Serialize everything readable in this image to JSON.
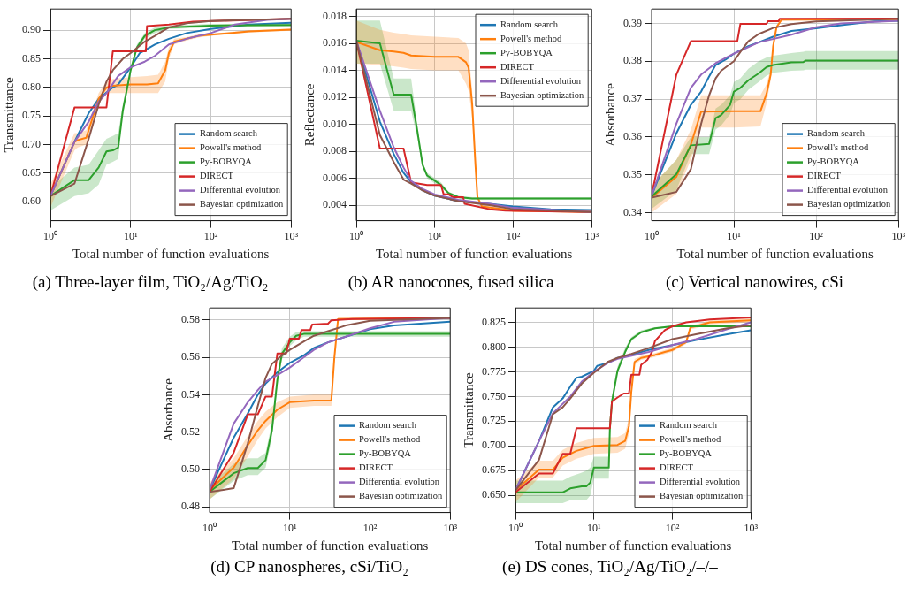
{
  "chart_data": [
    {
      "type": "line",
      "title": "(a) Three-layer film, TiO₂/Ag/TiO₂",
      "xlabel": "Total number of function evaluations",
      "ylabel": "Transmittance",
      "log": "x",
      "grid": true,
      "legend": "bottom right",
      "marker": "none",
      "line_style": "solid",
      "xlim": [
        1,
        1000
      ],
      "xticks": [
        {
          "value": 1,
          "label": "10⁰"
        },
        {
          "value": 10,
          "label": "10¹"
        },
        {
          "value": 100,
          "label": "10²"
        },
        {
          "value": 1000,
          "label": "10³"
        }
      ],
      "ylim": [
        0.567,
        0.937
      ],
      "yticks": [
        {
          "value": 0.6,
          "label": "0.60"
        },
        {
          "value": 0.65,
          "label": "0.65"
        },
        {
          "value": 0.7,
          "label": "0.70"
        },
        {
          "value": 0.75,
          "label": "0.75"
        },
        {
          "value": 0.8,
          "label": "0.80"
        },
        {
          "value": 0.85,
          "label": "0.85"
        },
        {
          "value": 0.9,
          "label": "0.90"
        }
      ],
      "series": [
        {
          "name": "Random search",
          "color": "#1f77b4",
          "x": [
            1,
            2,
            3,
            4,
            6,
            7,
            10,
            13,
            20,
            30,
            50,
            100,
            300,
            1000
          ],
          "values": [
            0.61,
            0.705,
            0.755,
            0.78,
            0.8,
            0.805,
            0.835,
            0.86,
            0.875,
            0.885,
            0.895,
            0.902,
            0.91,
            0.913
          ]
        },
        {
          "name": "Powell's method",
          "color": "#ff7f0e",
          "x": [
            1,
            2,
            2.2,
            2.8,
            4,
            5,
            6,
            10,
            16,
            22,
            27,
            30,
            35,
            50,
            70,
            100,
            300,
            1000
          ],
          "values": [
            0.61,
            0.705,
            0.708,
            0.712,
            0.78,
            0.8,
            0.803,
            0.805,
            0.805,
            0.807,
            0.83,
            0.86,
            0.88,
            0.885,
            0.89,
            0.892,
            0.898,
            0.901
          ],
          "lower": [
            0.59,
            0.69,
            0.695,
            0.7,
            0.77,
            0.79,
            0.79,
            0.79,
            0.79,
            0.79,
            0.81,
            0.85,
            0.875,
            0.882,
            0.887,
            0.89,
            0.896,
            0.899
          ],
          "upper": [
            0.63,
            0.72,
            0.72,
            0.725,
            0.79,
            0.81,
            0.815,
            0.818,
            0.82,
            0.822,
            0.845,
            0.87,
            0.885,
            0.888,
            0.893,
            0.894,
            0.9,
            0.903
          ]
        },
        {
          "name": "Py-BOBYQA",
          "color": "#2ca02c",
          "x": [
            1,
            2,
            3,
            4,
            5,
            6,
            7,
            8,
            10,
            12,
            15,
            20,
            30,
            100,
            1000
          ],
          "values": [
            0.61,
            0.638,
            0.638,
            0.66,
            0.688,
            0.69,
            0.695,
            0.76,
            0.83,
            0.87,
            0.89,
            0.9,
            0.905,
            0.908,
            0.909
          ],
          "lower": [
            0.585,
            0.61,
            0.615,
            0.63,
            0.665,
            0.67,
            0.675,
            0.75,
            0.825,
            0.865,
            0.885,
            0.895,
            0.902,
            0.905,
            0.906
          ],
          "upper": [
            0.625,
            0.66,
            0.665,
            0.69,
            0.71,
            0.715,
            0.72,
            0.77,
            0.835,
            0.875,
            0.895,
            0.905,
            0.908,
            0.911,
            0.912
          ]
        },
        {
          "name": "DIRECT",
          "color": "#d62728",
          "x": [
            1,
            2,
            5,
            6,
            15.5,
            16,
            30,
            60,
            1000
          ],
          "values": [
            0.61,
            0.765,
            0.765,
            0.863,
            0.863,
            0.907,
            0.91,
            0.915,
            0.92
          ]
        },
        {
          "name": "Differential evolution",
          "color": "#9467bd",
          "x": [
            1,
            2,
            3,
            4,
            5,
            7,
            10,
            15,
            20,
            30,
            50,
            100,
            200,
            500,
            1000
          ],
          "values": [
            0.61,
            0.705,
            0.74,
            0.775,
            0.79,
            0.82,
            0.835,
            0.845,
            0.855,
            0.875,
            0.885,
            0.895,
            0.91,
            0.918,
            0.92
          ]
        },
        {
          "name": "Bayesian optimization",
          "color": "#8c564b",
          "x": [
            1,
            2,
            3,
            4,
            5,
            6,
            8,
            10,
            15,
            20,
            30,
            50,
            100,
            1000
          ],
          "values": [
            0.61,
            0.632,
            0.71,
            0.77,
            0.81,
            0.83,
            0.85,
            0.86,
            0.88,
            0.89,
            0.905,
            0.912,
            0.916,
            0.92
          ]
        }
      ]
    },
    {
      "type": "line",
      "title": "(b) AR nanocones, fused silica",
      "xlabel": "Total number of function evaluations",
      "ylabel": "Reflectance",
      "log": "x",
      "grid": true,
      "legend": "top right",
      "marker": "none",
      "line_style": "solid",
      "xlim": [
        1,
        1000
      ],
      "xticks": [
        {
          "value": 1,
          "label": "10⁰"
        },
        {
          "value": 10,
          "label": "10¹"
        },
        {
          "value": 100,
          "label": "10²"
        },
        {
          "value": 1000,
          "label": "10³"
        }
      ],
      "ylim": [
        0.00285,
        0.01855
      ],
      "yticks": [
        {
          "value": 0.004,
          "label": "0.004"
        },
        {
          "value": 0.006,
          "label": "0.006"
        },
        {
          "value": 0.008,
          "label": "0.008"
        },
        {
          "value": 0.01,
          "label": "0.010"
        },
        {
          "value": 0.012,
          "label": "0.012"
        },
        {
          "value": 0.014,
          "label": "0.014"
        },
        {
          "value": 0.016,
          "label": "0.016"
        },
        {
          "value": 0.018,
          "label": "0.018"
        }
      ],
      "series": [
        {
          "name": "Random search",
          "color": "#1f77b4",
          "x": [
            1,
            2,
            3,
            4,
            5,
            7,
            10,
            20,
            50,
            100,
            300,
            1000
          ],
          "values": [
            0.0162,
            0.0102,
            0.0078,
            0.0064,
            0.0057,
            0.0051,
            0.0047,
            0.0043,
            0.0041,
            0.0039,
            0.0037,
            0.00365
          ]
        },
        {
          "name": "Powell's method",
          "color": "#ff7f0e",
          "x": [
            1,
            2,
            3,
            4,
            5,
            10,
            20,
            25,
            27,
            30,
            33,
            35,
            40,
            100,
            1000
          ],
          "values": [
            0.0161,
            0.0155,
            0.0154,
            0.0153,
            0.0151,
            0.015,
            0.015,
            0.0146,
            0.0142,
            0.0115,
            0.007,
            0.0046,
            0.0039,
            0.0036,
            0.0035
          ],
          "lower": [
            0.0145,
            0.0144,
            0.0143,
            0.0142,
            0.0141,
            0.014,
            0.014,
            0.013,
            0.0125,
            0.0105,
            0.0065,
            0.0044,
            0.0038,
            0.0035,
            0.00345
          ],
          "upper": [
            0.0177,
            0.017,
            0.0168,
            0.0167,
            0.0166,
            0.0165,
            0.0164,
            0.016,
            0.0155,
            0.0125,
            0.0075,
            0.0048,
            0.004,
            0.0037,
            0.00355
          ]
        },
        {
          "name": "Py-BOBYQA",
          "color": "#2ca02c",
          "x": [
            1,
            2,
            3,
            5,
            6,
            7,
            8,
            12,
            15,
            20,
            30,
            1000
          ],
          "values": [
            0.0162,
            0.016,
            0.0122,
            0.0122,
            0.0095,
            0.007,
            0.0062,
            0.0055,
            0.0049,
            0.0046,
            0.0045,
            0.0045
          ],
          "lower": [
            0.0145,
            0.0145,
            0.011,
            0.011,
            0.009,
            0.0068,
            0.006,
            0.0053,
            0.0048,
            0.0045,
            0.0044,
            0.0044
          ],
          "upper": [
            0.0177,
            0.0177,
            0.0134,
            0.0134,
            0.01,
            0.0072,
            0.0064,
            0.0057,
            0.005,
            0.0047,
            0.0046,
            0.0046
          ]
        },
        {
          "name": "DIRECT",
          "color": "#d62728",
          "x": [
            1,
            2,
            4,
            5,
            8,
            12,
            13,
            15,
            17,
            23,
            24,
            50,
            80,
            1000
          ],
          "values": [
            0.0162,
            0.0082,
            0.0082,
            0.0057,
            0.0055,
            0.0055,
            0.0048,
            0.0048,
            0.0046,
            0.0046,
            0.0041,
            0.0037,
            0.0036,
            0.0035
          ]
        },
        {
          "name": "Differential evolution",
          "color": "#9467bd",
          "x": [
            1,
            2,
            3,
            4,
            5,
            7,
            10,
            20,
            50,
            100,
            1000
          ],
          "values": [
            0.0162,
            0.011,
            0.0083,
            0.0068,
            0.0058,
            0.0052,
            0.0048,
            0.0044,
            0.0041,
            0.0038,
            0.0035
          ]
        },
        {
          "name": "Bayesian optimization",
          "color": "#8c564b",
          "x": [
            1,
            2,
            3,
            4,
            5,
            7,
            10,
            20,
            50,
            100,
            1000
          ],
          "values": [
            0.0162,
            0.0092,
            0.0072,
            0.0059,
            0.0056,
            0.0051,
            0.0047,
            0.0043,
            0.004,
            0.0037,
            0.0035
          ]
        }
      ]
    },
    {
      "type": "line",
      "title": "(c) Vertical nanowires, cSi",
      "xlabel": "Total number of function evaluations",
      "ylabel": "Absorbance",
      "log": "x",
      "grid": true,
      "legend": "bottom right",
      "marker": "none",
      "line_style": "solid",
      "xlim": [
        1,
        1000
      ],
      "xticks": [
        {
          "value": 1,
          "label": "10⁰"
        },
        {
          "value": 10,
          "label": "10¹"
        },
        {
          "value": 100,
          "label": "10²"
        },
        {
          "value": 1000,
          "label": "10³"
        }
      ],
      "ylim": [
        0.3379,
        0.3938
      ],
      "yticks": [
        {
          "value": 0.34,
          "label": "0.34"
        },
        {
          "value": 0.35,
          "label": "0.35"
        },
        {
          "value": 0.36,
          "label": "0.36"
        },
        {
          "value": 0.37,
          "label": "0.37"
        },
        {
          "value": 0.38,
          "label": "0.38"
        },
        {
          "value": 0.39,
          "label": "0.39"
        }
      ],
      "series": [
        {
          "name": "Random search",
          "color": "#1f77b4",
          "x": [
            1,
            2,
            3,
            4,
            5,
            6,
            8,
            10,
            15,
            20,
            30,
            50,
            100,
            200,
            500,
            1000
          ],
          "values": [
            0.3445,
            0.361,
            0.3685,
            0.372,
            0.376,
            0.379,
            0.3805,
            0.382,
            0.384,
            0.385,
            0.3865,
            0.388,
            0.3887,
            0.3895,
            0.3905,
            0.3907
          ]
        },
        {
          "name": "Powell's method",
          "color": "#ff7f0e",
          "x": [
            1,
            2,
            3,
            4,
            10,
            21,
            25,
            28,
            30,
            33,
            38,
            1000
          ],
          "values": [
            0.344,
            0.3495,
            0.358,
            0.3667,
            0.3668,
            0.3668,
            0.3715,
            0.3765,
            0.384,
            0.389,
            0.391,
            0.3911
          ],
          "lower": [
            0.34,
            0.345,
            0.354,
            0.3625,
            0.3625,
            0.3628,
            0.369,
            0.375,
            0.383,
            0.3885,
            0.3907,
            0.3908
          ],
          "upper": [
            0.347,
            0.354,
            0.362,
            0.371,
            0.371,
            0.371,
            0.374,
            0.378,
            0.385,
            0.3895,
            0.3913,
            0.3914
          ]
        },
        {
          "name": "Py-BOBYQA",
          "color": "#2ca02c",
          "x": [
            1,
            2,
            3,
            5,
            6,
            7,
            9,
            10,
            12,
            15,
            20,
            25,
            30,
            50,
            70,
            75,
            1000
          ],
          "values": [
            0.3443,
            0.3502,
            0.3578,
            0.3582,
            0.365,
            0.3658,
            0.3685,
            0.372,
            0.373,
            0.375,
            0.3768,
            0.3785,
            0.379,
            0.3797,
            0.3798,
            0.3802,
            0.3802
          ],
          "lower": [
            0.341,
            0.346,
            0.3555,
            0.3555,
            0.362,
            0.363,
            0.366,
            0.369,
            0.37,
            0.3725,
            0.3745,
            0.3762,
            0.377,
            0.3775,
            0.3776,
            0.3778,
            0.3778
          ],
          "upper": [
            0.347,
            0.354,
            0.36,
            0.36,
            0.3675,
            0.3685,
            0.371,
            0.3745,
            0.3755,
            0.378,
            0.38,
            0.381,
            0.3815,
            0.3822,
            0.3825,
            0.3827,
            0.3827
          ]
        },
        {
          "name": "DIRECT",
          "color": "#d62728",
          "x": [
            1,
            2,
            3,
            11,
            12,
            25,
            26,
            35,
            36,
            1000
          ],
          "values": [
            0.3445,
            0.3765,
            0.3853,
            0.3853,
            0.3899,
            0.3899,
            0.3906,
            0.3906,
            0.3912,
            0.3913
          ]
        },
        {
          "name": "Differential evolution",
          "color": "#9467bd",
          "x": [
            1,
            2,
            3,
            4,
            6,
            10,
            20,
            50,
            100,
            200,
            1000
          ],
          "values": [
            0.3445,
            0.3635,
            0.373,
            0.3765,
            0.3795,
            0.382,
            0.385,
            0.387,
            0.389,
            0.39,
            0.3907
          ]
        },
        {
          "name": "Bayesian optimization",
          "color": "#8c564b",
          "x": [
            1,
            2,
            3,
            4,
            5,
            6,
            7,
            10,
            12,
            15,
            20,
            30,
            50,
            100,
            1000
          ],
          "values": [
            0.344,
            0.3455,
            0.3515,
            0.3635,
            0.371,
            0.3755,
            0.3775,
            0.38,
            0.3825,
            0.3853,
            0.3872,
            0.3888,
            0.3898,
            0.3905,
            0.3912
          ]
        }
      ]
    },
    {
      "type": "line",
      "title": "(d) CP nanospheres, cSi/TiO₂",
      "xlabel": "Total number of function evaluations",
      "ylabel": "Absorbance",
      "log": "x",
      "grid": true,
      "legend": "bottom right",
      "marker": "none",
      "line_style": "solid",
      "xlim": [
        1,
        1000
      ],
      "xticks": [
        {
          "value": 1,
          "label": "10⁰"
        },
        {
          "value": 10,
          "label": "10¹"
        },
        {
          "value": 100,
          "label": "10²"
        },
        {
          "value": 1000,
          "label": "10³"
        }
      ],
      "ylim": [
        0.477,
        0.5864
      ],
      "yticks": [
        {
          "value": 0.48,
          "label": "0.48"
        },
        {
          "value": 0.5,
          "label": "0.50"
        },
        {
          "value": 0.52,
          "label": "0.52"
        },
        {
          "value": 0.54,
          "label": "0.54"
        },
        {
          "value": 0.56,
          "label": "0.56"
        },
        {
          "value": 0.58,
          "label": "0.58"
        }
      ],
      "series": [
        {
          "name": "Random search",
          "color": "#1f77b4",
          "x": [
            1,
            2,
            3,
            4,
            5,
            7,
            10,
            15,
            20,
            30,
            50,
            100,
            200,
            1000
          ],
          "values": [
            0.489,
            0.517,
            0.53,
            0.54,
            0.546,
            0.552,
            0.557,
            0.561,
            0.565,
            0.568,
            0.571,
            0.575,
            0.577,
            0.579
          ]
        },
        {
          "name": "Powell's method",
          "color": "#ff7f0e",
          "x": [
            1,
            2,
            3,
            4,
            5,
            7,
            10,
            20,
            33,
            36,
            40,
            1000
          ],
          "values": [
            0.489,
            0.501,
            0.513,
            0.521,
            0.526,
            0.532,
            0.536,
            0.5368,
            0.537,
            0.56,
            0.5805,
            0.581
          ],
          "lower": [
            0.484,
            0.495,
            0.507,
            0.516,
            0.522,
            0.528,
            0.533,
            0.534,
            0.534,
            0.558,
            0.58,
            0.5806
          ],
          "upper": [
            0.493,
            0.506,
            0.518,
            0.526,
            0.531,
            0.536,
            0.539,
            0.54,
            0.54,
            0.562,
            0.581,
            0.5814
          ]
        },
        {
          "name": "Py-BOBYQA",
          "color": "#2ca02c",
          "x": [
            1,
            2,
            3,
            4,
            5,
            6,
            7,
            8,
            10,
            12,
            15,
            1000
          ],
          "values": [
            0.488,
            0.498,
            0.5008,
            0.5008,
            0.505,
            0.521,
            0.548,
            0.562,
            0.568,
            0.5715,
            0.5725,
            0.5725
          ],
          "lower": [
            0.484,
            0.494,
            0.497,
            0.497,
            0.501,
            0.517,
            0.545,
            0.559,
            0.566,
            0.569,
            0.571,
            0.571
          ],
          "upper": [
            0.492,
            0.503,
            0.506,
            0.506,
            0.509,
            0.525,
            0.551,
            0.565,
            0.571,
            0.5735,
            0.574,
            0.574
          ]
        },
        {
          "name": "DIRECT",
          "color": "#d62728",
          "x": [
            1,
            2,
            3,
            4,
            5,
            6,
            7,
            9,
            10,
            13,
            14,
            18,
            19,
            30,
            33,
            60,
            1000
          ],
          "values": [
            0.488,
            0.509,
            0.5295,
            0.5295,
            0.539,
            0.539,
            0.562,
            0.562,
            0.57,
            0.57,
            0.5745,
            0.5745,
            0.5775,
            0.578,
            0.5798,
            0.5805,
            0.581
          ]
        },
        {
          "name": "Differential evolution",
          "color": "#9467bd",
          "x": [
            1,
            2,
            3,
            4,
            5,
            7,
            10,
            15,
            20,
            30,
            50,
            100,
            200,
            1000
          ],
          "values": [
            0.489,
            0.5245,
            0.536,
            0.5425,
            0.547,
            0.5505,
            0.5545,
            0.56,
            0.564,
            0.568,
            0.571,
            0.5755,
            0.579,
            0.581
          ]
        },
        {
          "name": "Bayesian optimization",
          "color": "#8c564b",
          "x": [
            1,
            2,
            3,
            4,
            5,
            6,
            8,
            10,
            15,
            20,
            30,
            50,
            100,
            1000
          ],
          "values": [
            0.488,
            0.49,
            0.514,
            0.534,
            0.549,
            0.5565,
            0.561,
            0.564,
            0.5685,
            0.5715,
            0.574,
            0.577,
            0.5795,
            0.581
          ]
        }
      ]
    },
    {
      "type": "line",
      "title": "(e) DS cones, TiO₂/Ag/TiO₂/–/–",
      "xlabel": "Total number of function evaluations",
      "ylabel": "Transmittance",
      "log": "x",
      "grid": true,
      "legend": "bottom right",
      "marker": "none",
      "line_style": "solid",
      "xlim": [
        1,
        1000
      ],
      "xticks": [
        {
          "value": 1,
          "label": "10⁰"
        },
        {
          "value": 10,
          "label": "10¹"
        },
        {
          "value": 100,
          "label": "10²"
        },
        {
          "value": 1000,
          "label": "10³"
        }
      ],
      "ylim": [
        0.6326,
        0.8396
      ],
      "yticks": [
        {
          "value": 0.65,
          "label": "0.650"
        },
        {
          "value": 0.675,
          "label": "0.675"
        },
        {
          "value": 0.7,
          "label": "0.700"
        },
        {
          "value": 0.725,
          "label": "0.725"
        },
        {
          "value": 0.75,
          "label": "0.750"
        },
        {
          "value": 0.775,
          "label": "0.775"
        },
        {
          "value": 0.8,
          "label": "0.800"
        },
        {
          "value": 0.825,
          "label": "0.825"
        }
      ],
      "series": [
        {
          "name": "Random search",
          "color": "#1f77b4",
          "x": [
            1,
            2,
            3,
            4,
            5,
            6,
            7,
            10,
            11,
            15,
            20,
            30,
            50,
            100,
            200,
            500,
            1000
          ],
          "values": [
            0.655,
            0.705,
            0.739,
            0.748,
            0.76,
            0.769,
            0.77,
            0.776,
            0.781,
            0.784,
            0.789,
            0.792,
            0.797,
            0.802,
            0.807,
            0.813,
            0.817
          ]
        },
        {
          "name": "Powell's method",
          "color": "#ff7f0e",
          "x": [
            1,
            2,
            3,
            4,
            6,
            10,
            20,
            25,
            28,
            30,
            33,
            40,
            60,
            80,
            100,
            150,
            170,
            200,
            300,
            1000
          ],
          "values": [
            0.655,
            0.676,
            0.676,
            0.688,
            0.695,
            0.7,
            0.701,
            0.705,
            0.72,
            0.755,
            0.785,
            0.789,
            0.792,
            0.795,
            0.797,
            0.805,
            0.82,
            0.821,
            0.825,
            0.827
          ],
          "lower": [
            0.643,
            0.668,
            0.668,
            0.68,
            0.687,
            0.692,
            0.693,
            0.697,
            0.712,
            0.75,
            0.782,
            0.787,
            0.79,
            0.793,
            0.795,
            0.803,
            0.818,
            0.819,
            0.823,
            0.825
          ],
          "upper": [
            0.665,
            0.685,
            0.685,
            0.696,
            0.703,
            0.708,
            0.709,
            0.713,
            0.728,
            0.76,
            0.788,
            0.791,
            0.794,
            0.797,
            0.799,
            0.807,
            0.822,
            0.823,
            0.827,
            0.829
          ]
        },
        {
          "name": "Py-BOBYQA",
          "color": "#2ca02c",
          "x": [
            1,
            4,
            5,
            7,
            8,
            9,
            10,
            15.5,
            16,
            17,
            20,
            25,
            30,
            40,
            60,
            100,
            1000
          ],
          "values": [
            0.653,
            0.653,
            0.657,
            0.659,
            0.659,
            0.663,
            0.678,
            0.678,
            0.718,
            0.745,
            0.776,
            0.795,
            0.808,
            0.815,
            0.819,
            0.821,
            0.821
          ],
          "lower": [
            0.642,
            0.642,
            0.645,
            0.645,
            0.645,
            0.65,
            0.667,
            0.667,
            0.71,
            0.74,
            0.773,
            0.793,
            0.806,
            0.814,
            0.818,
            0.82,
            0.82
          ],
          "upper": [
            0.665,
            0.665,
            0.669,
            0.673,
            0.675,
            0.678,
            0.689,
            0.689,
            0.726,
            0.75,
            0.78,
            0.799,
            0.81,
            0.817,
            0.82,
            0.822,
            0.822
          ]
        },
        {
          "name": "DIRECT",
          "color": "#d62728",
          "x": [
            1,
            2,
            3,
            4,
            5,
            6,
            16,
            17,
            20,
            24,
            28,
            30,
            38,
            40,
            48,
            55,
            60,
            70,
            80,
            100,
            150,
            300,
            1000
          ],
          "values": [
            0.653,
            0.672,
            0.672,
            0.692,
            0.692,
            0.718,
            0.718,
            0.745,
            0.749,
            0.753,
            0.753,
            0.772,
            0.772,
            0.782,
            0.787,
            0.795,
            0.806,
            0.812,
            0.817,
            0.821,
            0.825,
            0.828,
            0.83
          ]
        },
        {
          "name": "Differential evolution",
          "color": "#9467bd",
          "x": [
            1,
            2,
            3,
            5,
            7,
            10,
            15,
            20,
            50,
            100,
            200,
            500,
            1000
          ],
          "values": [
            0.655,
            0.705,
            0.733,
            0.75,
            0.765,
            0.775,
            0.784,
            0.788,
            0.795,
            0.802,
            0.808,
            0.818,
            0.825
          ]
        },
        {
          "name": "Bayesian optimization",
          "color": "#8c564b",
          "x": [
            1,
            2,
            3,
            4,
            5,
            7,
            10,
            15,
            20,
            30,
            50,
            100,
            200,
            500,
            1000
          ],
          "values": [
            0.655,
            0.686,
            0.732,
            0.739,
            0.748,
            0.763,
            0.774,
            0.785,
            0.789,
            0.793,
            0.799,
            0.808,
            0.813,
            0.819,
            0.822
          ]
        }
      ]
    }
  ]
}
